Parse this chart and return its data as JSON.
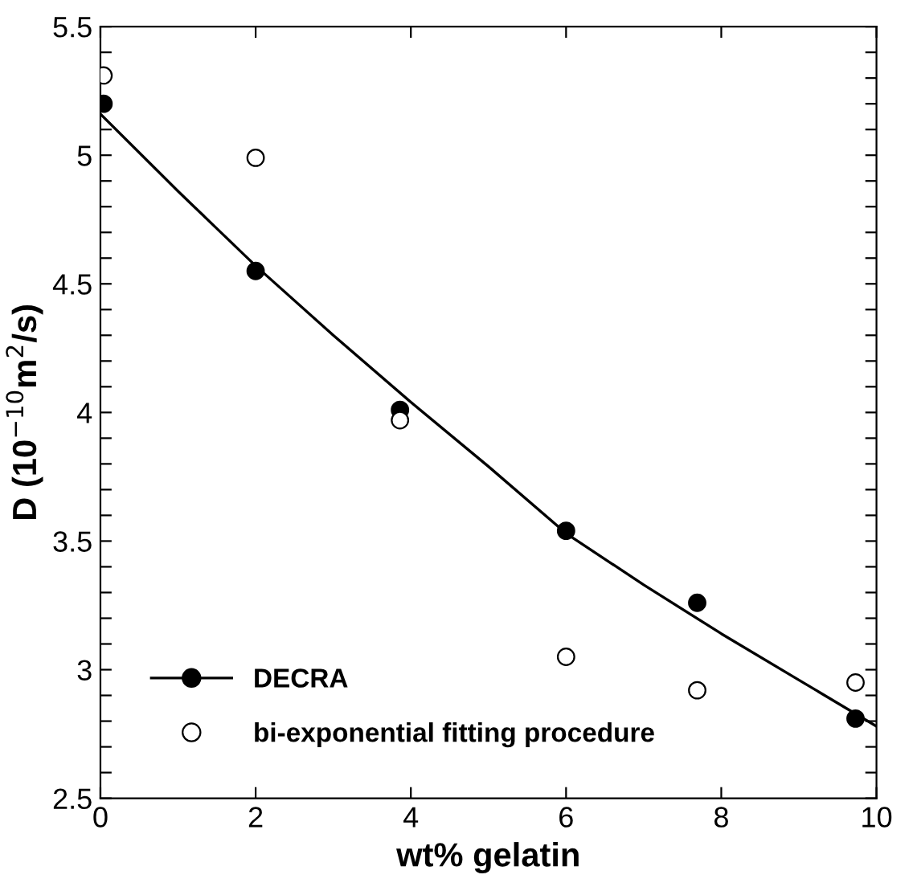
{
  "chart_data": {
    "type": "scatter",
    "xlabel": "wt% gelatin",
    "ylabel": "D (10$^{−10}$m$^{2}$/s)",
    "xlim": [
      0,
      10
    ],
    "xticks": [
      0,
      2,
      4,
      6,
      8,
      10
    ],
    "ylim": [
      2.5,
      5.5
    ],
    "yticks": [
      2.5,
      {
        "value": 2.6,
        "label": null
      },
      {
        "value": 2.7,
        "label": null
      },
      {
        "value": 2.8,
        "label": null
      },
      {
        "value": 2.9,
        "label": null
      },
      3,
      {
        "value": 3.1,
        "label": null
      },
      {
        "value": 3.2,
        "label": null
      },
      {
        "value": 3.3,
        "label": null
      },
      {
        "value": 3.4,
        "label": null
      },
      3.5,
      {
        "value": 3.6,
        "label": null
      },
      {
        "value": 3.7,
        "label": null
      },
      {
        "value": 3.8,
        "label": null
      },
      {
        "value": 3.9,
        "label": null
      },
      4,
      {
        "value": 4.1,
        "label": null
      },
      {
        "value": 4.2,
        "label": null
      },
      {
        "value": 4.3,
        "label": null
      },
      {
        "value": 4.4,
        "label": null
      },
      4.5,
      {
        "value": 4.6,
        "label": null
      },
      {
        "value": 4.7,
        "label": null
      },
      {
        "value": 4.8,
        "label": null
      },
      {
        "value": 4.9,
        "label": null
      },
      5,
      {
        "value": 5.1,
        "label": null
      },
      {
        "value": 5.2,
        "label": null
      },
      {
        "value": 5.3,
        "label": null
      },
      {
        "value": 5.4,
        "label": null
      },
      5.5
    ],
    "grid": false,
    "legend": "bottom left",
    "series": [
      {
        "type": "line",
        "marker": "none",
        "color": "#000000",
        "x": [
          0,
          1,
          2,
          3,
          4,
          5,
          6,
          7,
          8,
          9,
          10
        ],
        "values": [
          5.16,
          4.86,
          4.57,
          4.3,
          4.04,
          3.79,
          3.53,
          3.33,
          3.14,
          2.96,
          2.78
        ]
      },
      {
        "name": "DECRA",
        "marker": "circle",
        "color": "#000000",
        "x": [
          0.04,
          2.0,
          3.86,
          6.0,
          7.69,
          9.73
        ],
        "values": [
          5.2,
          4.55,
          4.01,
          3.54,
          3.26,
          2.81
        ]
      },
      {
        "name": "bi-exponential fitting procedure",
        "marker": "circle",
        "color": "#ffffff",
        "x": [
          0.04,
          2.0,
          3.86,
          6.0,
          7.69,
          9.73
        ],
        "values": [
          5.31,
          4.99,
          3.97,
          3.05,
          2.92,
          2.95
        ]
      }
    ]
  }
}
